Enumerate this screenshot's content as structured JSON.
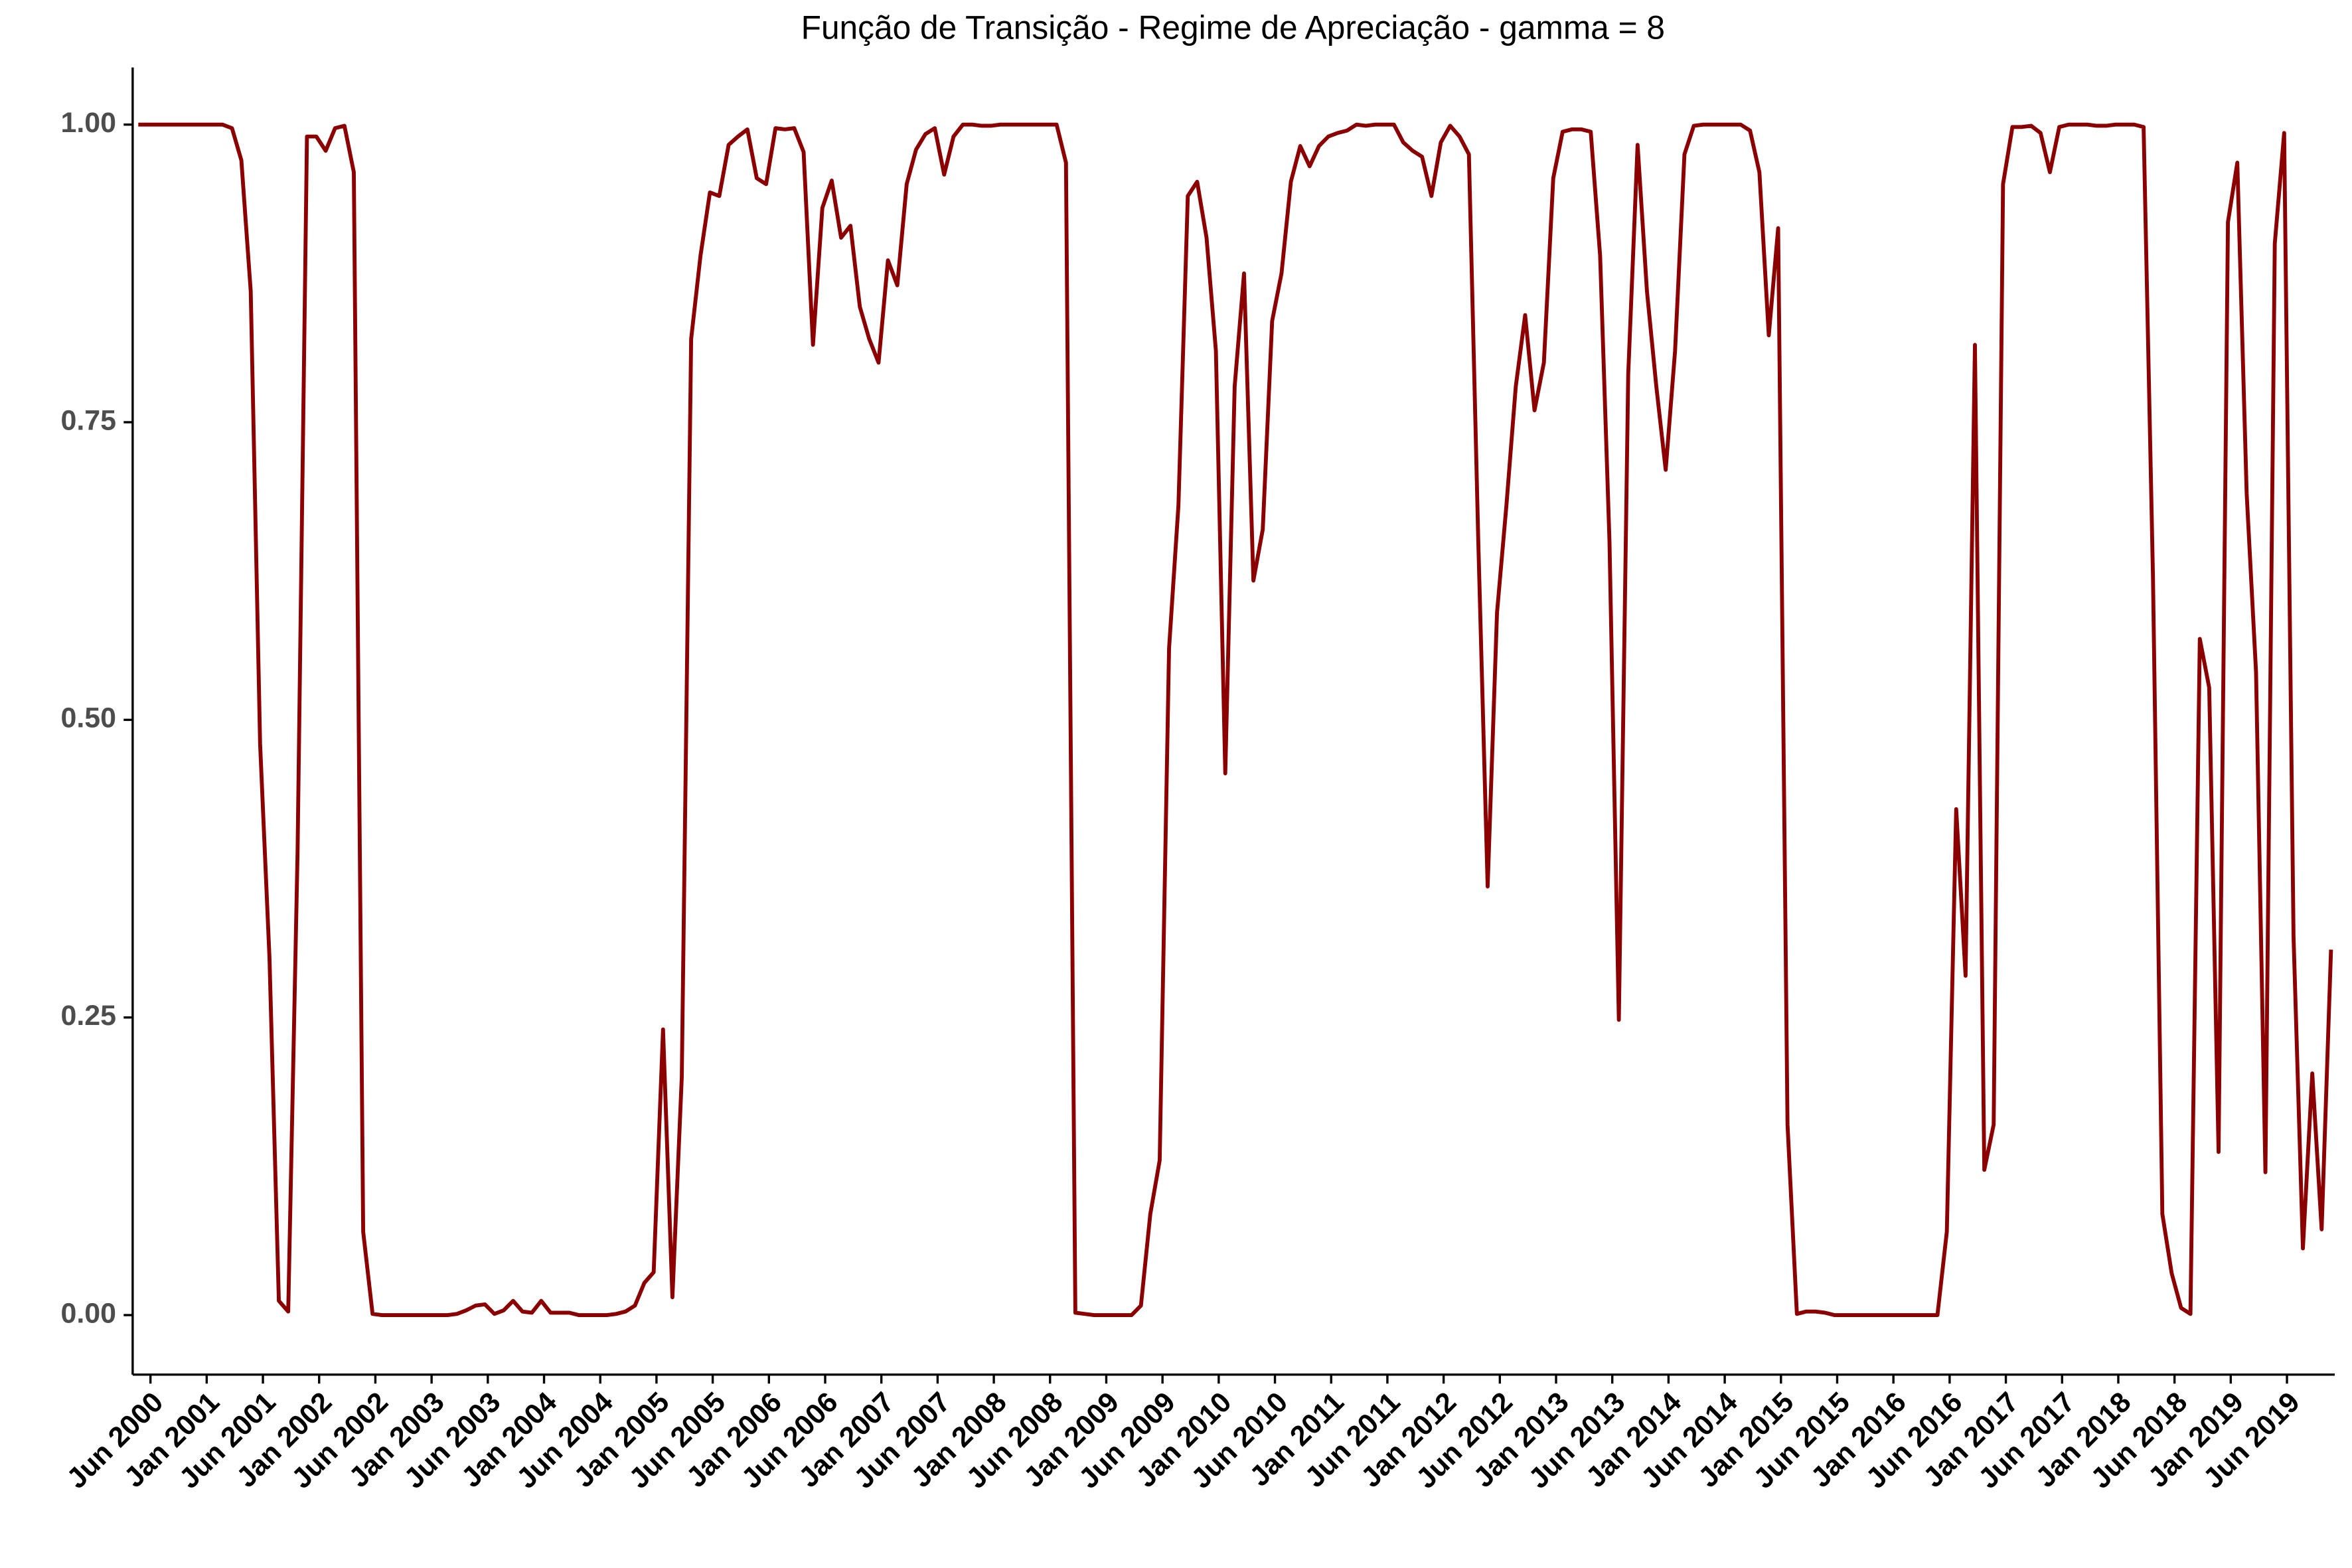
{
  "chart_data": {
    "type": "line",
    "title": "Função de Transição - Regime de Apreciação - gamma = 8",
    "x": [
      0,
      1,
      2,
      3,
      4,
      5,
      6,
      7,
      8,
      9,
      10,
      11,
      12,
      13,
      14,
      15,
      16,
      17,
      18,
      19,
      20,
      21,
      22,
      23,
      24,
      25,
      26,
      27,
      28,
      29,
      30,
      31,
      32,
      33,
      34,
      35,
      36,
      37,
      38,
      39,
      40,
      41,
      42,
      43,
      44,
      45,
      46,
      47,
      48,
      49,
      50,
      51,
      52,
      53,
      54,
      55,
      56,
      57,
      58,
      59,
      60,
      61,
      62,
      63,
      64,
      65,
      66,
      67,
      68,
      69,
      70,
      71,
      72,
      73,
      74,
      75,
      76,
      77,
      78,
      79,
      80,
      81,
      82,
      83,
      84,
      85,
      86,
      87,
      88,
      89,
      90,
      91,
      92,
      93,
      94,
      95,
      96,
      97,
      98,
      99,
      100,
      101,
      102,
      103,
      104,
      105,
      106,
      107,
      108,
      109,
      110,
      111,
      112,
      113,
      114,
      115,
      116,
      117,
      118,
      119,
      120,
      121,
      122,
      123,
      124,
      125,
      126,
      127,
      128,
      129,
      130,
      131,
      132,
      133,
      134,
      135,
      136,
      137,
      138,
      139,
      140,
      141,
      142,
      143,
      144,
      145,
      146,
      147,
      148,
      149,
      150,
      151,
      152,
      153,
      154,
      155,
      156,
      157,
      158,
      159,
      160,
      161,
      162,
      163,
      164,
      165,
      166,
      167,
      168,
      169,
      170,
      171,
      172,
      173,
      174,
      175,
      176,
      177,
      178,
      179,
      180,
      181,
      182,
      183,
      184,
      185,
      186,
      187,
      188,
      189,
      190,
      191,
      192,
      193,
      194,
      195,
      196,
      197,
      198,
      199,
      200,
      201,
      202,
      203,
      204,
      205,
      206,
      207,
      208,
      209,
      210,
      211,
      212,
      213,
      214,
      215,
      216,
      217,
      218,
      219,
      220,
      221,
      222,
      223,
      224,
      225,
      226,
      227,
      228,
      229,
      230,
      231,
      232,
      233,
      234
    ],
    "series": [
      {
        "name": "gamma = 8",
        "color": "#8b0000",
        "values": [
          1,
          1,
          1,
          1,
          1,
          1,
          1,
          1,
          1,
          1,
          0.997,
          0.97,
          0.86,
          0.48,
          0.3,
          0.012,
          0.003,
          0.39,
          0.99,
          0.99,
          0.978,
          0.997,
          0.999,
          0.96,
          0.07,
          0.001,
          0,
          0,
          0,
          0,
          0,
          0,
          0,
          0,
          0.001,
          0.004,
          0.008,
          0.009,
          0.001,
          0.004,
          0.012,
          0.003,
          0.002,
          0.012,
          0.002,
          0.002,
          0.002,
          0,
          0,
          0,
          0,
          0.001,
          0.003,
          0.008,
          0.027,
          0.036,
          0.24,
          0.015,
          0.2,
          0.82,
          0.89,
          0.943,
          0.94,
          0.983,
          0.99,
          0.996,
          0.955,
          0.95,
          0.997,
          0.996,
          0.997,
          0.977,
          0.815,
          0.93,
          0.953,
          0.905,
          0.915,
          0.847,
          0.82,
          0.8,
          0.886,
          0.865,
          0.95,
          0.979,
          0.992,
          0.997,
          0.958,
          0.99,
          1,
          1,
          0.999,
          0.999,
          1,
          1,
          1,
          1,
          1,
          1,
          1,
          0.968,
          0.002,
          0.001,
          0,
          0,
          0,
          0,
          0,
          0.008,
          0.085,
          0.13,
          0.56,
          0.68,
          0.94,
          0.952,
          0.905,
          0.81,
          0.455,
          0.78,
          0.875,
          0.617,
          0.66,
          0.835,
          0.875,
          0.952,
          0.982,
          0.965,
          0.982,
          0.99,
          0.993,
          0.995,
          1,
          0.999,
          1,
          1,
          1,
          0.985,
          0.978,
          0.973,
          0.94,
          0.985,
          0.999,
          0.99,
          0.975,
          0.65,
          0.36,
          0.59,
          0.68,
          0.78,
          0.84,
          0.76,
          0.8,
          0.955,
          0.994,
          0.996,
          0.996,
          0.994,
          0.89,
          0.65,
          0.248,
          0.79,
          0.983,
          0.86,
          0.78,
          0.71,
          0.81,
          0.975,
          0.999,
          1,
          1,
          1,
          1,
          1,
          0.995,
          0.96,
          0.823,
          0.913,
          0.16,
          0.001,
          0.003,
          0.003,
          0.002,
          0,
          0,
          0,
          0,
          0,
          0,
          0,
          0,
          0,
          0,
          0,
          0,
          0.07,
          0.425,
          0.285,
          0.815,
          0.122,
          0.16,
          0.95,
          0.998,
          0.998,
          0.999,
          0.993,
          0.96,
          0.998,
          1,
          1,
          1,
          0.999,
          0.999,
          1,
          1,
          1,
          0.998,
          0.62,
          0.085,
          0.035,
          0.006,
          0.001,
          0.568,
          0.527,
          0.137,
          0.918,
          0.968,
          0.69,
          0.54,
          0.12,
          0.9,
          0.993,
          0.318,
          0.056,
          0.203,
          0.072,
          0.307
        ]
      }
    ],
    "xlim": [
      -0.6,
      234.4
    ],
    "xticks": [
      {
        "value": 1.3,
        "label": "Jun 2000"
      },
      {
        "value": 7.3,
        "label": "Jan 2001"
      },
      {
        "value": 13.3,
        "label": "Jun 2001"
      },
      {
        "value": 19.3,
        "label": "Jan 2002"
      },
      {
        "value": 25.3,
        "label": "Jun 2002"
      },
      {
        "value": 31.3,
        "label": "Jan 2003"
      },
      {
        "value": 37.3,
        "label": "Jun 2003"
      },
      {
        "value": 43.3,
        "label": "Jan 2004"
      },
      {
        "value": 49.3,
        "label": "Jun 2004"
      },
      {
        "value": 55.3,
        "label": "Jan 2005"
      },
      {
        "value": 61.3,
        "label": "Jun 2005"
      },
      {
        "value": 67.3,
        "label": "Jan 2006"
      },
      {
        "value": 73.3,
        "label": "Jun 2006"
      },
      {
        "value": 79.3,
        "label": "Jan 2007"
      },
      {
        "value": 85.3,
        "label": "Jun 2007"
      },
      {
        "value": 91.3,
        "label": "Jan 2008"
      },
      {
        "value": 97.3,
        "label": "Jun 2008"
      },
      {
        "value": 103.3,
        "label": "Jan 2009"
      },
      {
        "value": 109.3,
        "label": "Jun 2009"
      },
      {
        "value": 115.3,
        "label": "Jan 2010"
      },
      {
        "value": 121.3,
        "label": "Jun 2010"
      },
      {
        "value": 127.3,
        "label": "Jan 2011"
      },
      {
        "value": 133.3,
        "label": "Jun 2011"
      },
      {
        "value": 139.3,
        "label": "Jan 2012"
      },
      {
        "value": 145.3,
        "label": "Jun 2012"
      },
      {
        "value": 151.3,
        "label": "Jan 2013"
      },
      {
        "value": 157.3,
        "label": "Jun 2013"
      },
      {
        "value": 163.3,
        "label": "Jan 2014"
      },
      {
        "value": 169.3,
        "label": "Jun 2014"
      },
      {
        "value": 175.3,
        "label": "Jan 2015"
      },
      {
        "value": 181.3,
        "label": "Jun 2015"
      },
      {
        "value": 187.3,
        "label": "Jan 2016"
      },
      {
        "value": 193.3,
        "label": "Jun 2016"
      },
      {
        "value": 199.3,
        "label": "Jan 2017"
      },
      {
        "value": 205.3,
        "label": "Jun 2017"
      },
      {
        "value": 211.3,
        "label": "Jan 2018"
      },
      {
        "value": 217.3,
        "label": "Jun 2018"
      },
      {
        "value": 223.3,
        "label": "Jan 2019"
      },
      {
        "value": 229.3,
        "label": "Jun 2019"
      }
    ],
    "ylim": [
      -0.05,
      1.048
    ],
    "yticks": [
      {
        "value": 0,
        "label": "0.00"
      },
      {
        "value": 0.25,
        "label": "0.25"
      },
      {
        "value": 0.5,
        "label": "0.50"
      },
      {
        "value": 0.75,
        "label": "0.75"
      },
      {
        "value": 1,
        "label": "1.00"
      }
    ],
    "grid": false
  }
}
